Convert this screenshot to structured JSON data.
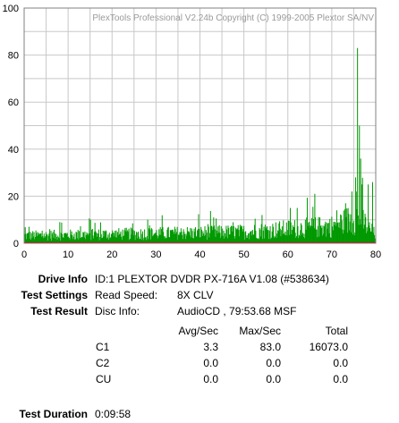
{
  "chart_data": {
    "type": "bar",
    "watermark": "PlexTools Professional V2.24b Copyright (C) 1999-2005 Plextor SA/NV",
    "xlim": [
      0,
      80
    ],
    "ylim": [
      0,
      100
    ],
    "xticks": [
      0,
      10,
      20,
      30,
      40,
      50,
      60,
      70,
      80
    ],
    "yticks": [
      0,
      20,
      40,
      60,
      80,
      100
    ],
    "grid": true,
    "end_marker_x": 80,
    "bar_color": "#009900",
    "baseline_color": "#cc0000",
    "series": [
      {
        "name": "C1",
        "x_start": 0,
        "x_end": 79.9,
        "n_points": 560,
        "profile": [
          {
            "x": 0,
            "typ": 4
          },
          {
            "x": 50,
            "typ": 6
          },
          {
            "x": 70,
            "typ": 9
          },
          {
            "x": 76,
            "typ": 14
          },
          {
            "x": 80,
            "typ": 4
          }
        ],
        "spikes": [
          {
            "x": 1,
            "y": 7
          },
          {
            "x": 8,
            "y": 9
          },
          {
            "x": 15,
            "y": 10
          },
          {
            "x": 28,
            "y": 10
          },
          {
            "x": 43,
            "y": 11
          },
          {
            "x": 54,
            "y": 12
          },
          {
            "x": 62,
            "y": 15
          },
          {
            "x": 66,
            "y": 21
          },
          {
            "x": 71,
            "y": 14
          },
          {
            "x": 73,
            "y": 17
          },
          {
            "x": 74.5,
            "y": 22
          },
          {
            "x": 75.3,
            "y": 28
          },
          {
            "x": 75.8,
            "y": 83
          },
          {
            "x": 76.2,
            "y": 50
          },
          {
            "x": 76.5,
            "y": 36
          },
          {
            "x": 76.8,
            "y": 25
          },
          {
            "x": 78.2,
            "y": 25
          },
          {
            "x": 79.2,
            "y": 26
          }
        ]
      }
    ]
  },
  "drive_info": {
    "label": "Drive Info",
    "value": "ID:1 PLEXTOR DVDR PX-716A V1.08 (#538634)"
  },
  "test_settings": {
    "label": "Test Settings",
    "name": "Read Speed:",
    "value": "8X CLV"
  },
  "test_result": {
    "label": "Test Result",
    "name": "Disc Info:",
    "value": "AudioCD , 79:53.68 MSF"
  },
  "stats": {
    "headers": [
      "Avg/Sec",
      "Max/Sec",
      "Total"
    ],
    "rows": [
      {
        "name": "C1",
        "avg": "3.3",
        "max": "83.0",
        "total": "16073.0"
      },
      {
        "name": "C2",
        "avg": "0.0",
        "max": "0.0",
        "total": "0.0"
      },
      {
        "name": "CU",
        "avg": "0.0",
        "max": "0.0",
        "total": "0.0"
      }
    ]
  },
  "test_duration": {
    "label": "Test Duration",
    "value": "0:09:58"
  }
}
